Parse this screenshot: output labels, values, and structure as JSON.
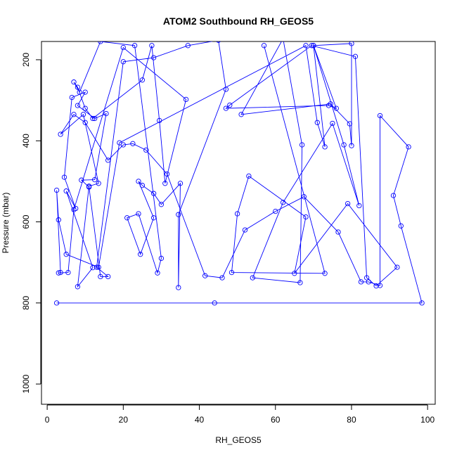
{
  "chart_data": {
    "type": "line",
    "title": "ATOM2 Southbound RH_GEOS5",
    "xlabel": "RH_GEOS5",
    "ylabel": "Pressure (mbar)",
    "xlim": [
      -1.5,
      102
    ],
    "ylim": [
      1050,
      155
    ],
    "y_reversed": true,
    "x_ticks": [
      0,
      20,
      40,
      60,
      80,
      100
    ],
    "y_ticks": [
      200,
      400,
      600,
      800,
      1000
    ],
    "grid": false,
    "legend": "none",
    "line_color": "#0000ff",
    "marker": "open-circle",
    "series": [
      {
        "points": [
          [
            2.5,
            800
          ],
          [
            44,
            800
          ],
          [
            98.5,
            800
          ],
          [
            93,
            610
          ],
          [
            91,
            535
          ],
          [
            95,
            415
          ],
          [
            87.5,
            338
          ],
          [
            87.5,
            757
          ],
          [
            84.5,
            748
          ],
          [
            82.5,
            748
          ],
          [
            76.5,
            625
          ],
          [
            67.5,
            538
          ],
          [
            60,
            574
          ],
          [
            52,
            620
          ],
          [
            46,
            738
          ],
          [
            41.5,
            733
          ],
          [
            31.5,
            482
          ],
          [
            26,
            423
          ],
          [
            22.5,
            407
          ],
          [
            20,
            410
          ],
          [
            16,
            448
          ],
          [
            10,
            355
          ],
          [
            7,
            335
          ],
          [
            3.5,
            384
          ],
          [
            9.5,
            335
          ],
          [
            13.5,
            505
          ],
          [
            11,
            512
          ],
          [
            8,
            760
          ],
          [
            12,
            713
          ],
          [
            5,
            524
          ],
          [
            7.5,
            567
          ],
          [
            4.5,
            490
          ],
          [
            6.5,
            293
          ],
          [
            10,
            280
          ],
          [
            8,
            313
          ],
          [
            12.5,
            345
          ],
          [
            15.5,
            333
          ],
          [
            12.5,
            496
          ],
          [
            9,
            497
          ],
          [
            11,
            514
          ],
          [
            14,
            735
          ],
          [
            16,
            735
          ],
          [
            13,
            712
          ],
          [
            20,
            205
          ],
          [
            28,
            195
          ],
          [
            37,
            165
          ],
          [
            45,
            152
          ],
          [
            47,
            273
          ],
          [
            34.5,
            582
          ],
          [
            34.5,
            762
          ],
          [
            35,
            505
          ],
          [
            30,
            557
          ],
          [
            28,
            530
          ],
          [
            25,
            510
          ],
          [
            24,
            500
          ],
          [
            28,
            590
          ],
          [
            24.5,
            680
          ],
          [
            21,
            590
          ],
          [
            24,
            580
          ],
          [
            29,
            726
          ],
          [
            30,
            690
          ],
          [
            23,
            165
          ],
          [
            14,
            155
          ],
          [
            8.5,
            280
          ],
          [
            7,
            255
          ],
          [
            8,
            268
          ],
          [
            10,
            320
          ],
          [
            12,
            345
          ],
          [
            25,
            250
          ],
          [
            27.5,
            165
          ],
          [
            29.5,
            350
          ],
          [
            31,
            505
          ],
          [
            36.5,
            298
          ],
          [
            20,
            170
          ],
          [
            7,
            570
          ],
          [
            5.5,
            725
          ],
          [
            3,
            726
          ],
          [
            3.5,
            725
          ],
          [
            2.5,
            522
          ],
          [
            3,
            595
          ],
          [
            5,
            680
          ],
          [
            13.5,
            712
          ],
          [
            19,
            405
          ],
          [
            68,
            165
          ],
          [
            71,
            355
          ],
          [
            73,
            415
          ],
          [
            70,
            165
          ],
          [
            78,
            410
          ],
          [
            82,
            560
          ],
          [
            75,
            357
          ],
          [
            62,
            552
          ],
          [
            54,
            738
          ],
          [
            66.5,
            750
          ],
          [
            67,
            410
          ],
          [
            62,
            148
          ],
          [
            51,
            335
          ],
          [
            74.5,
            309
          ],
          [
            79.5,
            358
          ],
          [
            80,
            412
          ],
          [
            80,
            160
          ],
          [
            70,
            165
          ],
          [
            76,
            320
          ],
          [
            74,
            313
          ],
          [
            47,
            320
          ],
          [
            48,
            312
          ],
          [
            69.5,
            165
          ],
          [
            81,
            192
          ],
          [
            84,
            738
          ],
          [
            86.5,
            758
          ],
          [
            92,
            712
          ],
          [
            79,
            555
          ],
          [
            65,
            727
          ],
          [
            68,
            588
          ],
          [
            53,
            487
          ],
          [
            50,
            580
          ],
          [
            48.5,
            725
          ],
          [
            73,
            727
          ],
          [
            57,
            165
          ]
        ]
      }
    ]
  }
}
